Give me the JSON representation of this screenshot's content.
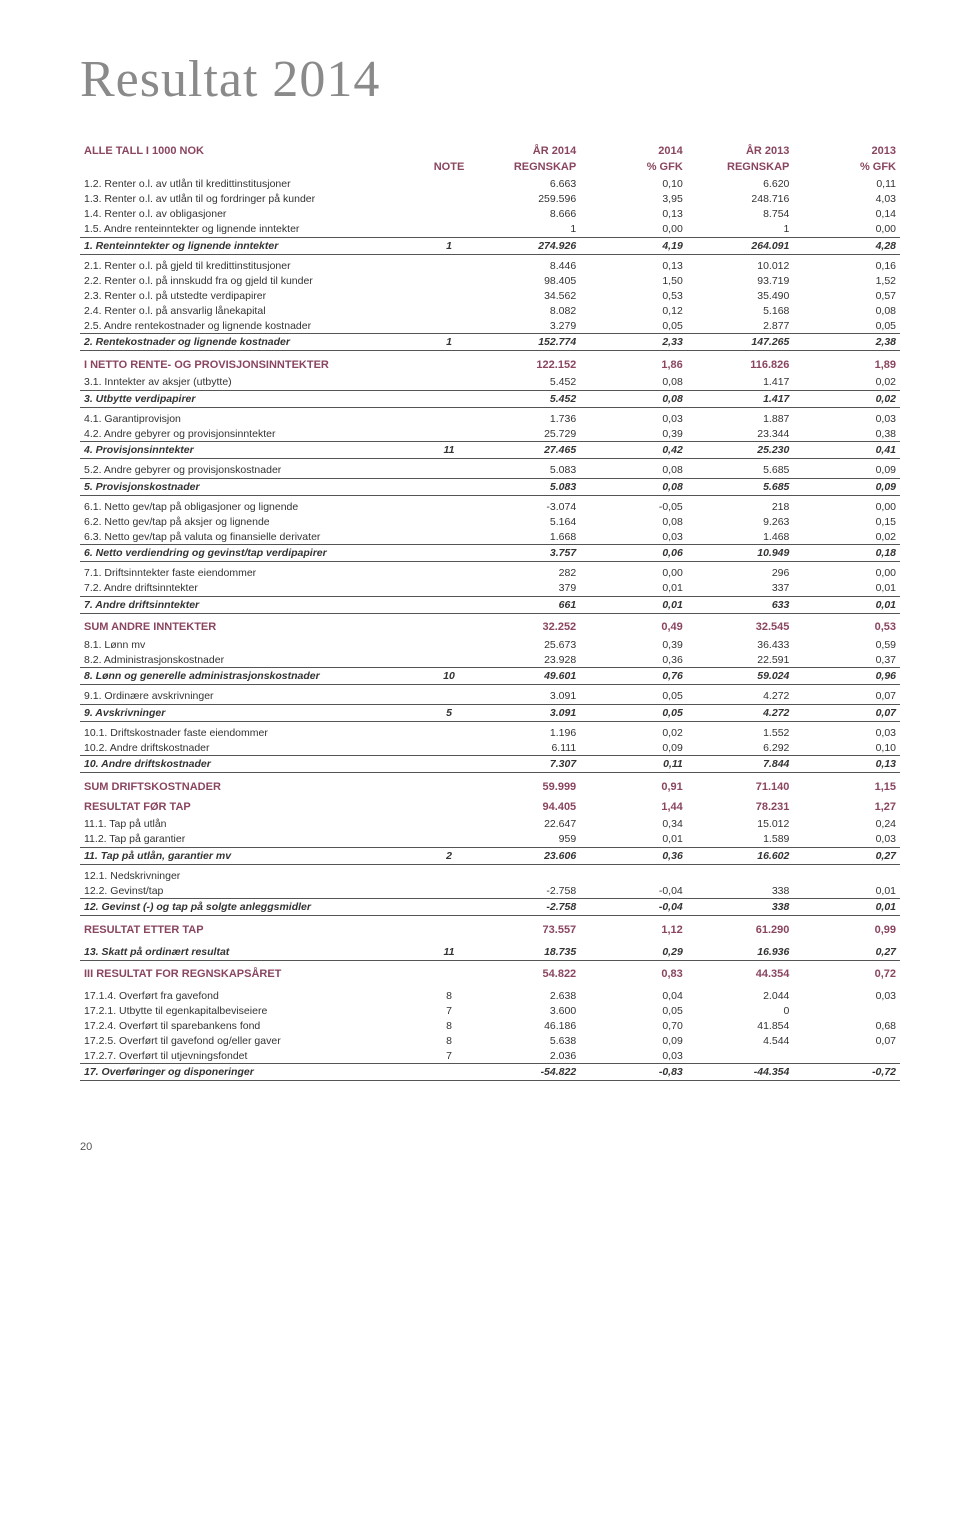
{
  "title": "Resultat 2014",
  "colors": {
    "accent": "#8a4560",
    "title": "#8a8a8a",
    "text": "#333333",
    "rule": "#555555",
    "background": "#ffffff"
  },
  "typography": {
    "title_fontsize": 52,
    "body_fontsize": 10.5,
    "header_fontsize": 11
  },
  "header": {
    "alle_tall": "ALLE TALL I 1000 NOK",
    "note": "NOTE",
    "ar2014": "ÅR 2014",
    "y2014": "2014",
    "ar2013": "ÅR 2013",
    "y2013": "2013",
    "regnskap": "REGNSKAP",
    "gfk": "% GFK"
  },
  "rows": [
    {
      "t": "detail",
      "label": "1.2. Renter o.l. av utlån til kredittinstitusjoner",
      "note": "",
      "v": [
        "6.663",
        "0,10",
        "6.620",
        "0,11"
      ]
    },
    {
      "t": "detail",
      "label": "1.3. Renter o.l. av utlån til og fordringer på kunder",
      "note": "",
      "v": [
        "259.596",
        "3,95",
        "248.716",
        "4,03"
      ]
    },
    {
      "t": "detail",
      "label": "1.4. Renter o.l. av obligasjoner",
      "note": "",
      "v": [
        "8.666",
        "0,13",
        "8.754",
        "0,14"
      ]
    },
    {
      "t": "detail",
      "label": "1.5. Andre renteinntekter og lignende inntekter",
      "note": "",
      "v": [
        "1",
        "0,00",
        "1",
        "0,00"
      ]
    },
    {
      "t": "subtotal",
      "top": true,
      "label": "1. Renteinntekter og lignende inntekter",
      "note": "1",
      "v": [
        "274.926",
        "4,19",
        "264.091",
        "4,28"
      ]
    },
    {
      "t": "gap"
    },
    {
      "t": "detail",
      "label": "2.1. Renter o.l. på gjeld til kredittinstitusjoner",
      "note": "",
      "v": [
        "8.446",
        "0,13",
        "10.012",
        "0,16"
      ]
    },
    {
      "t": "detail",
      "label": "2.2. Renter o.l. på innskudd fra og gjeld til kunder",
      "note": "",
      "v": [
        "98.405",
        "1,50",
        "93.719",
        "1,52"
      ]
    },
    {
      "t": "detail",
      "label": "2.3. Renter o.l. på utstedte verdipapirer",
      "note": "",
      "v": [
        "34.562",
        "0,53",
        "35.490",
        "0,57"
      ]
    },
    {
      "t": "detail",
      "label": "2.4. Renter o.l. på ansvarlig lånekapital",
      "note": "",
      "v": [
        "8.082",
        "0,12",
        "5.168",
        "0,08"
      ]
    },
    {
      "t": "detail",
      "label": "2.5. Andre rentekostnader og lignende kostnader",
      "note": "",
      "v": [
        "3.279",
        "0,05",
        "2.877",
        "0,05"
      ]
    },
    {
      "t": "subtotal",
      "top": true,
      "label": "2. Rentekostnader og lignende kostnader",
      "note": "1",
      "v": [
        "152.774",
        "2,33",
        "147.265",
        "2,38"
      ]
    },
    {
      "t": "gap"
    },
    {
      "t": "section",
      "label": "I NETTO RENTE- OG PROVISJONSINNTEKTER",
      "note": "",
      "v": [
        "122.152",
        "1,86",
        "116.826",
        "1,89"
      ]
    },
    {
      "t": "detail",
      "label": "3.1. Inntekter av aksjer (utbytte)",
      "note": "",
      "v": [
        "5.452",
        "0,08",
        "1.417",
        "0,02"
      ]
    },
    {
      "t": "subtotal",
      "top": true,
      "label": "3. Utbytte verdipapirer",
      "note": "",
      "v": [
        "5.452",
        "0,08",
        "1.417",
        "0,02"
      ]
    },
    {
      "t": "gap"
    },
    {
      "t": "detail",
      "label": "4.1. Garantiprovisjon",
      "note": "",
      "v": [
        "1.736",
        "0,03",
        "1.887",
        "0,03"
      ]
    },
    {
      "t": "detail",
      "label": "4.2. Andre gebyrer og provisjonsinntekter",
      "note": "",
      "v": [
        "25.729",
        "0,39",
        "23.344",
        "0,38"
      ]
    },
    {
      "t": "subtotal",
      "top": true,
      "label": "4. Provisjonsinntekter",
      "note": "11",
      "v": [
        "27.465",
        "0,42",
        "25.230",
        "0,41"
      ]
    },
    {
      "t": "gap"
    },
    {
      "t": "detail",
      "label": "5.2. Andre gebyrer og provisjonskostnader",
      "note": "",
      "v": [
        "5.083",
        "0,08",
        "5.685",
        "0,09"
      ]
    },
    {
      "t": "subtotal",
      "top": true,
      "label": "5. Provisjonskostnader",
      "note": "",
      "v": [
        "5.083",
        "0,08",
        "5.685",
        "0,09"
      ]
    },
    {
      "t": "gap"
    },
    {
      "t": "detail",
      "label": "6.1. Netto gev/tap på obligasjoner og lignende",
      "note": "",
      "v": [
        "-3.074",
        "-0,05",
        "218",
        "0,00"
      ]
    },
    {
      "t": "detail",
      "label": "6.2. Netto gev/tap på aksjer og lignende",
      "note": "",
      "v": [
        "5.164",
        "0,08",
        "9.263",
        "0,15"
      ]
    },
    {
      "t": "detail",
      "label": "6.3. Netto gev/tap på valuta og finansielle derivater",
      "note": "",
      "v": [
        "1.668",
        "0,03",
        "1.468",
        "0,02"
      ]
    },
    {
      "t": "subtotal",
      "top": true,
      "label": "6. Netto verdiendring og gevinst/tap verdipapirer",
      "note": "",
      "v": [
        "3.757",
        "0,06",
        "10.949",
        "0,18"
      ]
    },
    {
      "t": "gap"
    },
    {
      "t": "detail",
      "label": "7.1. Driftsinntekter faste eiendommer",
      "note": "",
      "v": [
        "282",
        "0,00",
        "296",
        "0,00"
      ]
    },
    {
      "t": "detail",
      "label": "7.2. Andre driftsinntekter",
      "note": "",
      "v": [
        "379",
        "0,01",
        "337",
        "0,01"
      ]
    },
    {
      "t": "subtotal",
      "top": true,
      "label": "7. Andre driftsinntekter",
      "note": "",
      "v": [
        "661",
        "0,01",
        "633",
        "0,01"
      ]
    },
    {
      "t": "gap"
    },
    {
      "t": "section",
      "label": "SUM ANDRE INNTEKTER",
      "note": "",
      "v": [
        "32.252",
        "0,49",
        "32.545",
        "0,53"
      ]
    },
    {
      "t": "detail",
      "label": "8.1. Lønn mv",
      "note": "",
      "v": [
        "25.673",
        "0,39",
        "36.433",
        "0,59"
      ]
    },
    {
      "t": "detail",
      "label": "8.2. Administrasjonskostnader",
      "note": "",
      "v": [
        "23.928",
        "0,36",
        "22.591",
        "0,37"
      ]
    },
    {
      "t": "subtotal",
      "top": true,
      "label": "8. Lønn og generelle administrasjonskostnader",
      "note": "10",
      "v": [
        "49.601",
        "0,76",
        "59.024",
        "0,96"
      ]
    },
    {
      "t": "gap"
    },
    {
      "t": "detail",
      "label": "9.1. Ordinære avskrivninger",
      "note": "",
      "v": [
        "3.091",
        "0,05",
        "4.272",
        "0,07"
      ]
    },
    {
      "t": "subtotal",
      "top": true,
      "label": "9. Avskrivninger",
      "note": "5",
      "v": [
        "3.091",
        "0,05",
        "4.272",
        "0,07"
      ]
    },
    {
      "t": "gap"
    },
    {
      "t": "detail",
      "label": "10.1. Driftskostnader faste eiendommer",
      "note": "",
      "v": [
        "1.196",
        "0,02",
        "1.552",
        "0,03"
      ]
    },
    {
      "t": "detail",
      "label": "10.2. Andre driftskostnader",
      "note": "",
      "v": [
        "6.111",
        "0,09",
        "6.292",
        "0,10"
      ]
    },
    {
      "t": "subtotal",
      "top": true,
      "label": "10. Andre driftskostnader",
      "note": "",
      "v": [
        "7.307",
        "0,11",
        "7.844",
        "0,13"
      ]
    },
    {
      "t": "gap"
    },
    {
      "t": "section",
      "label": "SUM DRIFTSKOSTNADER",
      "note": "",
      "v": [
        "59.999",
        "0,91",
        "71.140",
        "1,15"
      ]
    },
    {
      "t": "section",
      "label": "RESULTAT FØR TAP",
      "note": "",
      "v": [
        "94.405",
        "1,44",
        "78.231",
        "1,27"
      ]
    },
    {
      "t": "detail",
      "label": "11.1. Tap på utlån",
      "note": "",
      "v": [
        "22.647",
        "0,34",
        "15.012",
        "0,24"
      ]
    },
    {
      "t": "detail",
      "label": "11.2. Tap på garantier",
      "note": "",
      "v": [
        "959",
        "0,01",
        "1.589",
        "0,03"
      ]
    },
    {
      "t": "subtotal",
      "top": true,
      "label": "11. Tap på utlån, garantier mv",
      "note": "2",
      "v": [
        "23.606",
        "0,36",
        "16.602",
        "0,27"
      ]
    },
    {
      "t": "gap"
    },
    {
      "t": "detail",
      "label": "12.1. Nedskrivninger",
      "note": "",
      "v": [
        "",
        "",
        "",
        ""
      ]
    },
    {
      "t": "detail",
      "label": "12.2. Gevinst/tap",
      "note": "",
      "v": [
        "-2.758",
        "-0,04",
        "338",
        "0,01"
      ]
    },
    {
      "t": "subtotal",
      "top": true,
      "label": "12. Gevinst (-) og tap på solgte anleggsmidler",
      "note": "",
      "v": [
        "-2.758",
        "-0,04",
        "338",
        "0,01"
      ]
    },
    {
      "t": "gap"
    },
    {
      "t": "section",
      "label": "RESULTAT ETTER TAP",
      "note": "",
      "v": [
        "73.557",
        "1,12",
        "61.290",
        "0,99"
      ]
    },
    {
      "t": "gap"
    },
    {
      "t": "subtotal",
      "label": "13. Skatt på ordinært resultat",
      "note": "11",
      "v": [
        "18.735",
        "0,29",
        "16.936",
        "0,27"
      ]
    },
    {
      "t": "gap"
    },
    {
      "t": "section",
      "label": "III RESULTAT FOR REGNSKAPSÅRET",
      "note": "",
      "v": [
        "54.822",
        "0,83",
        "44.354",
        "0,72"
      ]
    },
    {
      "t": "gap"
    },
    {
      "t": "detail",
      "label": "17.1.4. Overført fra gavefond",
      "note": "8",
      "v": [
        "2.638",
        "0,04",
        "2.044",
        "0,03"
      ]
    },
    {
      "t": "detail",
      "label": "17.2.1. Utbytte til egenkapitalbeviseiere",
      "note": "7",
      "v": [
        "3.600",
        "0,05",
        "0",
        ""
      ]
    },
    {
      "t": "detail",
      "label": "17.2.4. Overført til sparebankens fond",
      "note": "8",
      "v": [
        "46.186",
        "0,70",
        "41.854",
        "0,68"
      ]
    },
    {
      "t": "detail",
      "label": "17.2.5. Overført til gavefond og/eller gaver",
      "note": "8",
      "v": [
        "5.638",
        "0,09",
        "4.544",
        "0,07"
      ]
    },
    {
      "t": "detail",
      "label": "17.2.7. Overført til utjevningsfondet",
      "note": "7",
      "v": [
        "2.036",
        "0,03",
        "",
        ""
      ]
    },
    {
      "t": "subtotal",
      "top": true,
      "label": "17. Overføringer og disponeringer",
      "note": "",
      "v": [
        "-54.822",
        "-0,83",
        "-44.354",
        "-0,72"
      ]
    }
  ],
  "page_number": "20"
}
